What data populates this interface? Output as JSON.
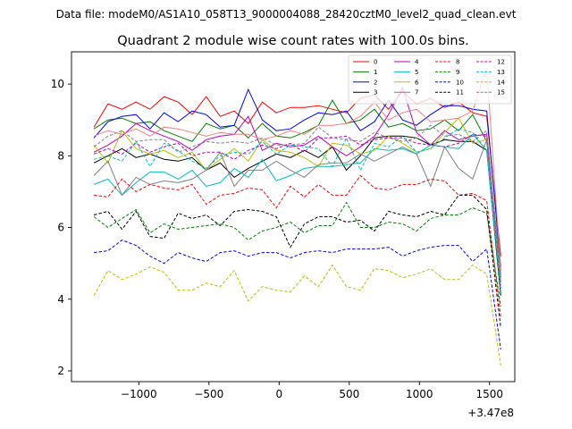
{
  "figure": {
    "suptitle": "Data file: modeM0/AS1A10_058T13_9000004088_28420cztM0_level2_quad_clean.evt"
  },
  "chart_data": {
    "type": "line",
    "title": "Quadrant 2 module wise count rates with 100.0s bins.",
    "xlabel": "",
    "ylabel": "",
    "x_offset_label": "+3.47e8",
    "xlim": [
      -1480,
      1680
    ],
    "ylim": [
      1.7,
      10.9
    ],
    "x_ticks": [
      -1000,
      -500,
      0,
      500,
      1000,
      1500
    ],
    "x_tick_labels": [
      "−1000",
      "−500",
      "0",
      "500",
      "1000",
      "1500"
    ],
    "y_ticks": [
      2,
      4,
      6,
      8,
      10
    ],
    "y_tick_labels": [
      "2",
      "4",
      "6",
      "8",
      "10"
    ],
    "grid": false,
    "legend_placement": "top-right",
    "x": [
      -1320,
      -1220,
      -1120,
      -1020,
      -920,
      -820,
      -720,
      -620,
      -520,
      -420,
      -320,
      -220,
      -120,
      -20,
      80,
      180,
      280,
      380,
      480,
      580,
      680,
      780,
      880,
      980,
      1080,
      1180,
      1280,
      1380,
      1480,
      1580
    ],
    "series": [
      {
        "name": "0",
        "color": "#ff0000",
        "dash": "solid",
        "values": [
          8.8,
          9.45,
          9.3,
          9.5,
          9.3,
          9.65,
          9.5,
          9.15,
          9.65,
          9.1,
          9.25,
          8.9,
          9.5,
          9.2,
          9.35,
          9.35,
          9.4,
          9.3,
          9.2,
          9.6,
          9.7,
          9.3,
          9.8,
          9.45,
          9.6,
          9.35,
          9.5,
          9.2,
          9.1,
          5.2
        ]
      },
      {
        "name": "1",
        "color": "#008000",
        "dash": "solid",
        "values": [
          8.75,
          9.0,
          9.05,
          8.9,
          8.95,
          8.7,
          8.55,
          8.4,
          8.9,
          8.75,
          8.85,
          8.5,
          8.9,
          8.55,
          8.5,
          8.65,
          8.85,
          9.55,
          8.9,
          9.0,
          9.3,
          8.8,
          8.9,
          8.7,
          8.75,
          9.0,
          8.7,
          9.15,
          8.4,
          4.8
        ]
      },
      {
        "name": "2",
        "color": "#0000ff",
        "dash": "solid",
        "values": [
          8.5,
          8.95,
          9.1,
          9.15,
          8.75,
          9.2,
          8.95,
          9.25,
          9.15,
          8.8,
          8.85,
          9.85,
          9.0,
          8.7,
          8.75,
          9.0,
          9.2,
          9.15,
          9.25,
          8.7,
          8.95,
          9.55,
          9.0,
          8.85,
          9.15,
          9.4,
          9.4,
          9.3,
          9.25,
          4.9
        ]
      },
      {
        "name": "3",
        "color": "#000000",
        "dash": "solid",
        "values": [
          7.8,
          8.0,
          8.2,
          7.95,
          8.05,
          7.9,
          7.85,
          7.95,
          7.6,
          7.8,
          7.4,
          7.65,
          7.85,
          8.05,
          7.95,
          8.15,
          7.95,
          8.25,
          7.6,
          8.0,
          8.5,
          8.55,
          8.55,
          8.5,
          8.3,
          8.45,
          8.4,
          8.4,
          8.15,
          4.1
        ]
      },
      {
        "name": "4",
        "color": "#bf00bf",
        "dash": "solid",
        "values": [
          8.1,
          8.3,
          8.55,
          8.9,
          8.7,
          8.55,
          8.4,
          8.15,
          8.45,
          8.55,
          8.6,
          9.1,
          8.15,
          8.35,
          8.25,
          8.3,
          8.55,
          8.25,
          8.0,
          8.25,
          8.55,
          9.15,
          9.9,
          8.65,
          8.3,
          8.7,
          8.45,
          8.55,
          8.6,
          4.6
        ]
      },
      {
        "name": "5",
        "color": "#00bfbf",
        "dash": "solid",
        "values": [
          7.2,
          7.35,
          6.9,
          7.25,
          7.55,
          7.55,
          7.35,
          7.6,
          7.15,
          7.25,
          7.65,
          7.4,
          7.9,
          7.3,
          7.45,
          7.65,
          7.7,
          7.7,
          7.75,
          7.8,
          8.2,
          8.15,
          8.2,
          8.05,
          8.3,
          8.25,
          8.2,
          8.6,
          8.15,
          4.3
        ]
      },
      {
        "name": "6",
        "color": "#bfbf00",
        "dash": "solid",
        "values": [
          8.3,
          7.8,
          8.7,
          8.2,
          8.05,
          8.15,
          7.95,
          8.1,
          7.6,
          7.9,
          8.2,
          7.85,
          8.45,
          8.15,
          8.1,
          7.95,
          7.7,
          8.35,
          8.3,
          8.05,
          8.15,
          8.55,
          8.35,
          8.1,
          8.2,
          8.65,
          9.05,
          8.35,
          8.45,
          4.5
        ]
      },
      {
        "name": "7",
        "color": "#808080",
        "dash": "solid",
        "values": [
          7.45,
          7.85,
          6.9,
          7.4,
          7.2,
          7.3,
          7.25,
          7.35,
          7.6,
          8.1,
          7.15,
          7.6,
          7.6,
          7.85,
          7.6,
          7.4,
          7.75,
          7.8,
          7.8,
          8.05,
          7.85,
          8.05,
          8.25,
          8.05,
          7.15,
          8.25,
          7.65,
          7.35,
          8.45,
          4.7
        ]
      },
      {
        "name": "8",
        "color": "#ff0000",
        "dash": "dashed",
        "values": [
          6.9,
          6.85,
          7.35,
          7.0,
          7.2,
          7.1,
          7.05,
          7.2,
          6.65,
          6.9,
          6.95,
          7.1,
          7.05,
          6.55,
          7.15,
          6.85,
          7.2,
          6.9,
          6.9,
          7.45,
          7.1,
          7.05,
          7.2,
          7.2,
          7.35,
          7.3,
          6.9,
          6.95,
          6.75,
          3.5
        ]
      },
      {
        "name": "9",
        "color": "#008000",
        "dash": "dashed",
        "values": [
          6.3,
          6.0,
          6.25,
          6.5,
          5.85,
          6.1,
          5.95,
          6.0,
          6.05,
          6.1,
          6.0,
          5.65,
          5.9,
          6.0,
          6.15,
          5.85,
          6.05,
          6.05,
          6.7,
          6.0,
          6.0,
          6.15,
          6.1,
          5.9,
          6.25,
          6.35,
          6.35,
          6.55,
          6.4,
          3.8
        ]
      },
      {
        "name": "10",
        "color": "#0000ff",
        "dash": "dashed",
        "values": [
          5.3,
          5.35,
          5.65,
          5.5,
          5.2,
          5.0,
          5.3,
          5.15,
          5.05,
          5.3,
          5.35,
          5.2,
          5.3,
          5.3,
          5.15,
          5.3,
          5.35,
          5.3,
          5.4,
          5.4,
          5.4,
          5.45,
          5.2,
          5.35,
          5.45,
          5.5,
          5.5,
          5.05,
          5.4,
          2.6
        ]
      },
      {
        "name": "11",
        "color": "#000000",
        "dash": "dashed",
        "values": [
          6.35,
          6.45,
          5.95,
          6.45,
          5.75,
          5.7,
          6.4,
          6.25,
          6.35,
          6.05,
          6.45,
          6.5,
          6.45,
          6.3,
          5.45,
          6.1,
          6.3,
          6.3,
          6.15,
          6.2,
          5.9,
          6.45,
          6.35,
          6.3,
          6.45,
          6.35,
          6.9,
          6.9,
          6.5,
          3.2
        ]
      },
      {
        "name": "12",
        "color": "#bf00bf",
        "dash": "dashed",
        "values": [
          8.05,
          8.2,
          8.05,
          8.35,
          8.1,
          8.25,
          8.35,
          8.0,
          8.1,
          8.1,
          7.9,
          8.15,
          8.3,
          8.2,
          8.35,
          8.1,
          8.5,
          8.5,
          8.55,
          8.3,
          8.45,
          8.5,
          8.5,
          8.35,
          8.3,
          8.25,
          8.35,
          8.6,
          8.55,
          4.4
        ]
      },
      {
        "name": "13",
        "color": "#00bfbf",
        "dash": "dashed",
        "values": [
          7.9,
          8.0,
          7.85,
          8.4,
          7.7,
          8.35,
          8.15,
          7.85,
          7.65,
          8.0,
          8.1,
          8.05,
          8.4,
          8.05,
          8.3,
          8.25,
          8.2,
          7.7,
          8.5,
          7.6,
          8.35,
          8.25,
          8.55,
          8.1,
          8.2,
          8.5,
          8.75,
          8.65,
          8.15,
          4.2
        ]
      },
      {
        "name": "14",
        "color": "#bfbf00",
        "dash": "dashed",
        "values": [
          4.1,
          4.8,
          4.55,
          4.7,
          4.9,
          4.75,
          4.25,
          4.25,
          4.45,
          4.35,
          4.8,
          3.95,
          4.35,
          4.25,
          4.2,
          4.65,
          4.35,
          4.95,
          4.35,
          4.25,
          4.85,
          4.8,
          4.6,
          4.7,
          4.85,
          4.55,
          4.55,
          4.95,
          4.7,
          2.15
        ]
      },
      {
        "name": "15",
        "color": "#808080",
        "dash": "dashed",
        "values": [
          8.25,
          8.55,
          8.7,
          8.4,
          8.45,
          8.45,
          8.1,
          8.25,
          8.4,
          8.35,
          8.4,
          8.35,
          8.5,
          8.3,
          8.3,
          8.35,
          8.8,
          8.5,
          8.45,
          8.4,
          8.65,
          8.5,
          8.4,
          8.5,
          8.85,
          8.55,
          8.6,
          8.4,
          8.7,
          4.5
        ]
      },
      {
        "name": "",
        "color": "#f08080",
        "dash": "solid",
        "values": [
          8.55,
          8.7,
          8.6,
          8.75,
          8.55,
          8.8,
          8.75,
          8.65,
          8.55,
          8.65,
          8.6,
          8.6,
          8.45,
          8.55,
          8.7,
          8.6,
          8.85,
          8.85,
          8.9,
          9.1,
          9.5,
          9.0,
          9.2,
          9.3,
          8.95,
          9.0,
          9.05,
          9.25,
          10.45,
          4.8
        ]
      }
    ]
  }
}
